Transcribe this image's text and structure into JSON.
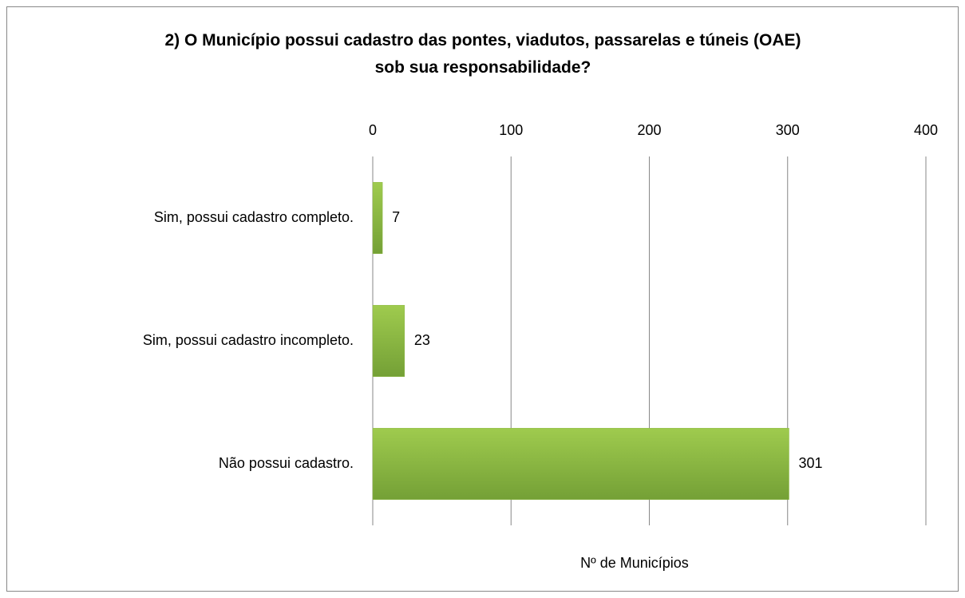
{
  "chart_data": {
    "type": "bar",
    "orientation": "horizontal",
    "title": "2) O Município possui cadastro das pontes, viadutos, passarelas e túneis (OAE) sob sua responsabilidade?",
    "categories": [
      "Sim, possui cadastro completo.",
      "Sim, possui cadastro incompleto.",
      "Não possui cadastro."
    ],
    "values": [
      7,
      23,
      301
    ],
    "color": "#8cb843",
    "xlabel": "Nº de Municípios",
    "xlim": [
      0,
      400
    ],
    "xticks": [
      0,
      100,
      200,
      300,
      400
    ],
    "grid": true
  }
}
